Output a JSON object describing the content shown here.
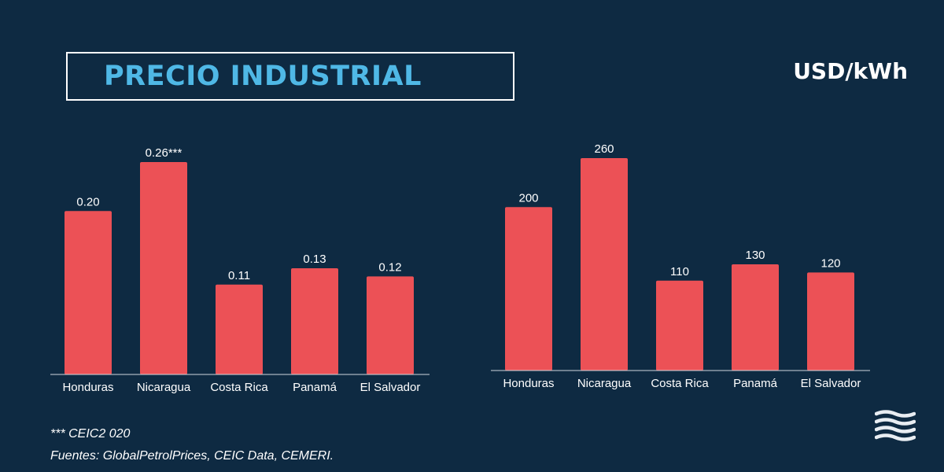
{
  "title": "PRECIO INDUSTRIAL",
  "unit": "USD/kWh",
  "footnote": "*** CEIC2 020",
  "sources": "Fuentes: GlobalPetrolPrices, CEIC Data, CEMERI.",
  "colors": {
    "background": "#0e2a42",
    "bar": "#ec5156",
    "title": "#4fb8e6",
    "text": "#ffffff",
    "axis": "#d0d6de"
  },
  "logo_icon": "waves-icon",
  "chart_data": [
    {
      "type": "bar",
      "categories": [
        "Honduras",
        "Nicaragua",
        "Costa Rica",
        "Panamá",
        "El Salvador"
      ],
      "values": [
        0.2,
        0.26,
        0.11,
        0.13,
        0.12
      ],
      "data_labels": [
        "0.20",
        "0.26***",
        "0.11",
        "0.13",
        "0.12"
      ],
      "ylim": [
        0,
        0.26
      ],
      "grid": false,
      "legend": "none"
    },
    {
      "type": "bar",
      "categories": [
        "Honduras",
        "Nicaragua",
        "Costa Rica",
        "Panamá",
        "El Salvador"
      ],
      "values": [
        200,
        260,
        110,
        130,
        120
      ],
      "data_labels": [
        "200",
        "260",
        "110",
        "130",
        "120"
      ],
      "ylim": [
        0,
        260
      ],
      "grid": false,
      "legend": "none"
    }
  ]
}
